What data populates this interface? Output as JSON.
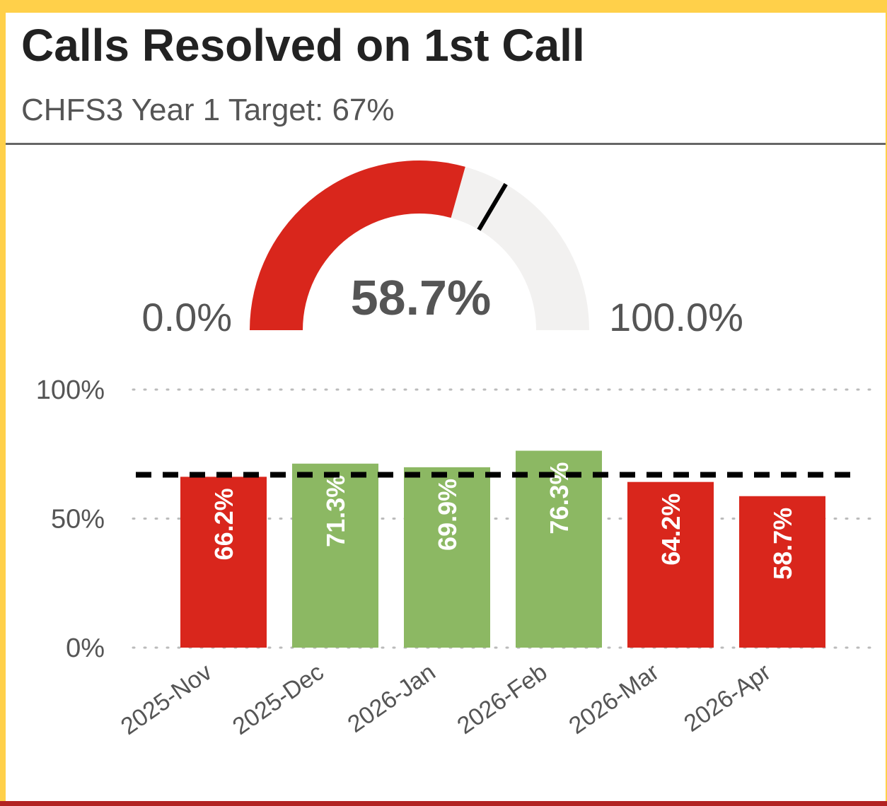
{
  "header": {
    "title": "Calls Resolved on 1st Call",
    "subtitle": "CHFS3 Year 1 Target: 67%"
  },
  "chart_data": [
    {
      "type": "gauge",
      "value": 58.7,
      "value_label": "58.7%",
      "target": 67,
      "ylim": [
        0,
        100
      ],
      "yticks": [
        {
          "value": 0,
          "label": "0.0%"
        },
        {
          "value": 100,
          "label": "100.0%"
        }
      ],
      "color": "#d9261c",
      "track_color": "#f2f1f0",
      "target_color": "#000000"
    },
    {
      "type": "bar",
      "categories": [
        "2025-Nov",
        "2025-Dec",
        "2026-Jan",
        "2026-Feb",
        "2026-Mar",
        "2026-Apr"
      ],
      "values": [
        66.2,
        71.3,
        69.9,
        76.3,
        64.2,
        58.7
      ],
      "value_labels": [
        "66.2%",
        "71.3%",
        "69.9%",
        "76.3%",
        "64.2%",
        "58.7%"
      ],
      "colors": [
        "#d9261c",
        "#8cb863",
        "#8cb863",
        "#8cb863",
        "#d9261c",
        "#d9261c"
      ],
      "target": 67,
      "target_color": "#000000",
      "ylim": [
        0,
        100
      ],
      "yticks": [
        {
          "value": 0,
          "label": "0%"
        },
        {
          "value": 50,
          "label": "50%"
        },
        {
          "value": 100,
          "label": "100%"
        }
      ],
      "grid": true
    }
  ]
}
